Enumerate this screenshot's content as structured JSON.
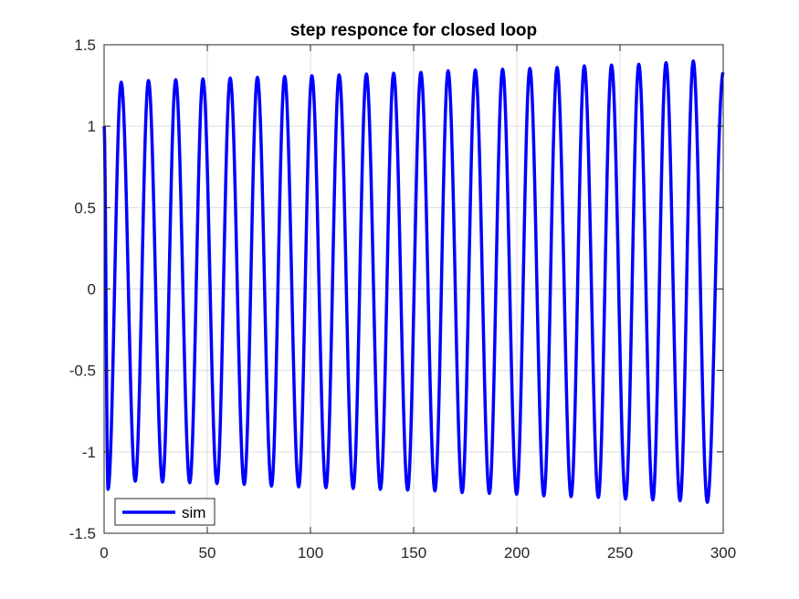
{
  "chart_data": {
    "type": "line",
    "title": "step responce for closed loop",
    "xlabel": "",
    "ylabel": "",
    "xlim": [
      0,
      300
    ],
    "ylim": [
      -1.5,
      1.5
    ],
    "xticks": [
      0,
      50,
      100,
      150,
      200,
      250,
      300
    ],
    "yticks": [
      -1.5,
      -1,
      -0.5,
      0,
      0.5,
      1,
      1.5
    ],
    "xtick_labels": [
      "0",
      "50",
      "100",
      "150",
      "200",
      "250",
      "300"
    ],
    "ytick_labels": [
      "-1.5",
      "-1",
      "-0.5",
      "0",
      "0.5",
      "1",
      "1.5"
    ],
    "grid": true,
    "legend_position": "bottom-left",
    "series": [
      {
        "name": "sim",
        "color": "#0000ff",
        "peaks": [
          {
            "x": 8.3,
            "y": 1.27
          },
          {
            "x": 21.5,
            "y": 1.28
          },
          {
            "x": 34.7,
            "y": 1.285
          },
          {
            "x": 47.9,
            "y": 1.29
          },
          {
            "x": 61.1,
            "y": 1.295
          },
          {
            "x": 74.3,
            "y": 1.3
          },
          {
            "x": 87.5,
            "y": 1.305
          },
          {
            "x": 100.7,
            "y": 1.31
          },
          {
            "x": 113.9,
            "y": 1.315
          },
          {
            "x": 127.1,
            "y": 1.32
          },
          {
            "x": 140.3,
            "y": 1.325
          },
          {
            "x": 153.5,
            "y": 1.33
          },
          {
            "x": 166.7,
            "y": 1.34
          },
          {
            "x": 179.9,
            "y": 1.345
          },
          {
            "x": 193.1,
            "y": 1.35
          },
          {
            "x": 206.3,
            "y": 1.355
          },
          {
            "x": 219.5,
            "y": 1.36
          },
          {
            "x": 232.7,
            "y": 1.37
          },
          {
            "x": 245.9,
            "y": 1.375
          },
          {
            "x": 259.1,
            "y": 1.38
          },
          {
            "x": 272.3,
            "y": 1.39
          },
          {
            "x": 285.5,
            "y": 1.4
          }
        ],
        "troughs": [
          {
            "x": 1.9,
            "y": -1.23
          },
          {
            "x": 15.1,
            "y": -1.18
          },
          {
            "x": 28.3,
            "y": -1.185
          },
          {
            "x": 41.5,
            "y": -1.19
          },
          {
            "x": 54.7,
            "y": -1.195
          },
          {
            "x": 67.9,
            "y": -1.2
          },
          {
            "x": 81.1,
            "y": -1.21
          },
          {
            "x": 94.3,
            "y": -1.215
          },
          {
            "x": 107.5,
            "y": -1.22
          },
          {
            "x": 120.7,
            "y": -1.225
          },
          {
            "x": 133.9,
            "y": -1.23
          },
          {
            "x": 147.1,
            "y": -1.235
          },
          {
            "x": 160.3,
            "y": -1.24
          },
          {
            "x": 173.5,
            "y": -1.25
          },
          {
            "x": 186.7,
            "y": -1.255
          },
          {
            "x": 199.9,
            "y": -1.26
          },
          {
            "x": 213.1,
            "y": -1.27
          },
          {
            "x": 226.3,
            "y": -1.275
          },
          {
            "x": 239.5,
            "y": -1.28
          },
          {
            "x": 252.7,
            "y": -1.29
          },
          {
            "x": 265.9,
            "y": -1.295
          },
          {
            "x": 279.1,
            "y": -1.3
          },
          {
            "x": 292.3,
            "y": -1.31
          }
        ],
        "x_start": 0,
        "y_start": 1.0,
        "x_end": 300,
        "y_end": 1.33
      }
    ]
  }
}
